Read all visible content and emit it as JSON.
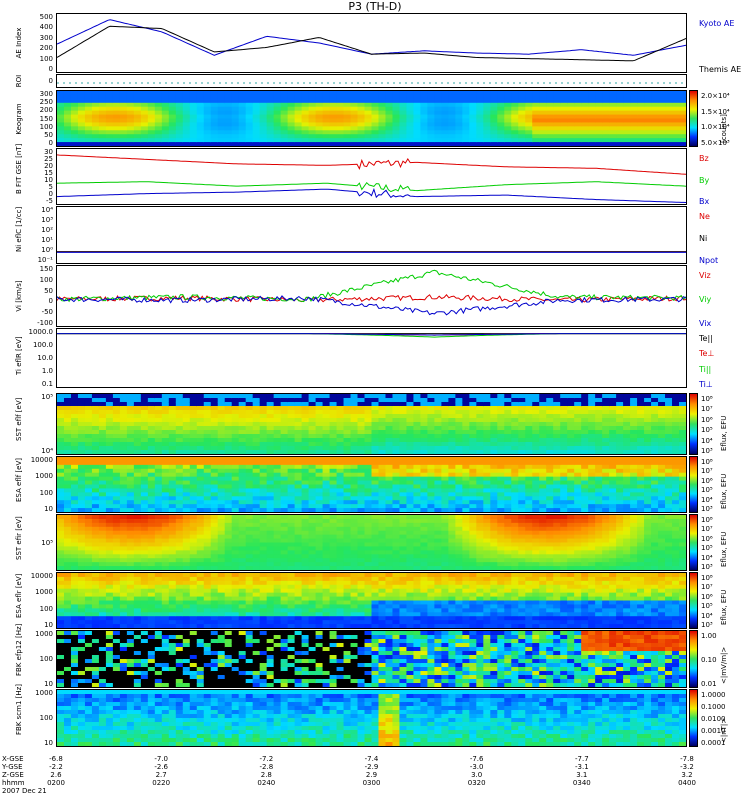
{
  "title": "P3 (TH-D)",
  "panels": [
    {
      "ylabel": "AE Index",
      "ticks": [
        "500",
        "400",
        "300",
        "200",
        "100",
        "0"
      ],
      "right": [
        "Kyoto AE",
        "Themis AE"
      ]
    },
    {
      "ylabel": "ROI",
      "ticks": [
        "0"
      ]
    },
    {
      "ylabel": "Keogram",
      "ticks": [
        "300",
        "250",
        "200",
        "150",
        "100",
        "50",
        "0"
      ],
      "cbar_ticks": [
        "2.0×10⁴",
        "1.5×10⁴",
        "1.0×10⁴",
        "5.0×10³"
      ],
      "cbar_title": "[counts]"
    },
    {
      "ylabel": "B FIT GSE [nT]",
      "ticks": [
        "30",
        "25",
        "20",
        "15",
        "10",
        "5",
        "0",
        "-5"
      ],
      "right": [
        "Bz",
        "By",
        "Bx"
      ]
    },
    {
      "ylabel": "Ni eflC [1/cc]",
      "ticks": [
        "10⁴",
        "10³",
        "10²",
        "10¹",
        "10⁰",
        "10⁻¹"
      ],
      "right": [
        "Ne",
        "Ni",
        "Npot"
      ]
    },
    {
      "ylabel": "Vi [km/s]",
      "ticks": [
        "150",
        "100",
        "50",
        "0",
        "-50",
        "-100"
      ],
      "right": [
        "Viz",
        "Viy",
        "Vix"
      ]
    },
    {
      "ylabel": "Ti eflR [eV]",
      "ticks": [
        "1000.0",
        "100.0",
        "10.0",
        "1.0",
        "0.1"
      ],
      "right": [
        "Te||",
        "Te⊥",
        "Ti||",
        "Ti⊥"
      ]
    },
    {
      "ylabel": "SST eflf [eV]",
      "ticks": [
        "10⁵",
        "10⁴"
      ],
      "cbar_ticks": [
        "10⁸",
        "10⁷",
        "10⁶",
        "10⁵",
        "10⁴",
        "10³"
      ],
      "cbar_title": "Eflux, EFU"
    },
    {
      "ylabel": "ESA eflf [eV]",
      "ticks": [
        "10000",
        "1000",
        "100",
        "10"
      ],
      "cbar_ticks": [
        "10⁸",
        "10⁷",
        "10⁶",
        "10⁵",
        "10⁴",
        "10³"
      ],
      "cbar_title": "Eflux, EFU"
    },
    {
      "ylabel": "SST efir [eV]",
      "ticks": [
        "10⁵"
      ],
      "cbar_ticks": [
        "10⁸",
        "10⁷",
        "10⁶",
        "10⁵",
        "10⁴",
        "10³"
      ],
      "cbar_title": "Eflux, EFU"
    },
    {
      "ylabel": "ESA eflr [eV]",
      "ticks": [
        "10000",
        "1000",
        "100",
        "10"
      ],
      "cbar_ticks": [
        "10⁸",
        "10⁷",
        "10⁶",
        "10⁵",
        "10⁴",
        "10³"
      ],
      "cbar_title": "Eflux, EFU"
    },
    {
      "ylabel": "FBK efp12 [Hz]",
      "ticks": [
        "1000",
        "100",
        "10"
      ],
      "cbar_ticks": [
        "1.00",
        "0.10",
        "0.01"
      ],
      "cbar_title": "<|mV/m|>"
    },
    {
      "ylabel": "FBK scm1 [Hz]",
      "ticks": [
        "1000",
        "100",
        "10"
      ],
      "cbar_ticks": [
        "1.0000",
        "0.1000",
        "0.0100",
        "0.0010",
        "0.0001"
      ],
      "cbar_title": "<|nT|>"
    }
  ],
  "xaxis": {
    "row_labels": [
      "X-GSE",
      "Y-GSE",
      "Z-GSE",
      "hhmm",
      "2007 Dec 21"
    ],
    "columns": [
      [
        "-6.8",
        "-2.2",
        "2.6",
        "0200"
      ],
      [
        "-7.0",
        "-2.6",
        "2.7",
        "0220"
      ],
      [
        "-7.2",
        "-2.8",
        "2.8",
        "0240"
      ],
      [
        "-7.4",
        "-2.9",
        "2.9",
        "0300"
      ],
      [
        "-7.6",
        "-3.0",
        "3.0",
        "0320"
      ],
      [
        "-7.7",
        "-3.1",
        "3.1",
        "0340"
      ],
      [
        "-7.8",
        "-3.2",
        "3.2",
        "0400"
      ]
    ]
  },
  "chart_data": [
    {
      "type": "line",
      "ylabel": "AE Index",
      "ylim": [
        0,
        520
      ],
      "x_hhmm": [
        "0200",
        "0210",
        "0220",
        "0230",
        "0240",
        "0250",
        "0300",
        "0310",
        "0320",
        "0330",
        "0340",
        "0350",
        "0400"
      ],
      "series": [
        {
          "name": "Kyoto AE",
          "color": "#0000cc",
          "values": [
            250,
            470,
            360,
            150,
            320,
            260,
            160,
            190,
            170,
            160,
            200,
            150,
            240
          ]
        },
        {
          "name": "Themis AE",
          "color": "#000000",
          "values": [
            130,
            410,
            390,
            180,
            220,
            310,
            160,
            170,
            130,
            120,
            110,
            100,
            300
          ]
        }
      ]
    },
    {
      "type": "heatmap",
      "ylabel": "Keogram",
      "ylim": [
        0,
        300
      ],
      "scale": "log",
      "range": [
        5000,
        20000
      ]
    },
    {
      "type": "line",
      "ylabel": "B FIT GSE",
      "ylim": [
        -6,
        31
      ],
      "x_hhmm": [
        "0200",
        "0220",
        "0240",
        "0300",
        "0310",
        "0320",
        "0340",
        "0400"
      ],
      "series": [
        {
          "name": "Bz",
          "color": "#dd0000",
          "values": [
            27,
            24,
            21,
            20,
            22,
            19,
            18,
            14
          ]
        },
        {
          "name": "By",
          "color": "#00cc00",
          "values": [
            8,
            9,
            6,
            8,
            3,
            7,
            9,
            6
          ]
        },
        {
          "name": "Bx",
          "color": "#0000cc",
          "values": [
            -1,
            1,
            2,
            4,
            -1,
            0,
            -3,
            -5
          ]
        }
      ]
    },
    {
      "type": "line",
      "ylabel": "Ni eflC",
      "ylim": [
        -1,
        4
      ],
      "scale": "log",
      "series": [
        {
          "name": "Ne",
          "color": "#dd0000",
          "values": [
            0,
            0,
            0,
            0,
            0,
            0
          ]
        },
        {
          "name": "Ni",
          "color": "#000000",
          "values": [
            0,
            0,
            0,
            0,
            0,
            0
          ]
        },
        {
          "name": "Npot",
          "color": "#0000cc",
          "values": [
            -0.05,
            -0.05,
            -0.05,
            -0.05,
            -0.05,
            -0.05
          ]
        }
      ]
    },
    {
      "type": "line",
      "ylabel": "Vi",
      "ylim": [
        -130,
        160
      ],
      "series": [
        {
          "name": "Viz",
          "color": "#dd0000",
          "values": [
            0,
            5,
            -5,
            10,
            -5,
            5
          ]
        },
        {
          "name": "Viy",
          "color": "#00cc00",
          "values": [
            0,
            10,
            0,
            130,
            10,
            5
          ]
        },
        {
          "name": "Vix",
          "color": "#0000cc",
          "values": [
            0,
            -5,
            5,
            -70,
            -5,
            0
          ]
        }
      ]
    },
    {
      "type": "line",
      "ylabel": "Ti eflR",
      "ylim": [
        0.05,
        5000
      ],
      "scale": "log",
      "series": [
        {
          "name": "Te||",
          "color": "#000000",
          "values": [
            2000,
            2000,
            2000,
            2000,
            2000,
            2000
          ]
        },
        {
          "name": "Te⊥",
          "color": "#dd0000",
          "values": [
            2000,
            2000,
            2000,
            1500,
            2000,
            2000
          ]
        },
        {
          "name": "Ti||",
          "color": "#00cc00",
          "values": [
            2000,
            2000,
            2000,
            1000,
            2000,
            2000
          ]
        },
        {
          "name": "Ti⊥",
          "color": "#0000cc",
          "values": [
            2000,
            2000,
            2000,
            1500,
            2000,
            2000
          ]
        }
      ]
    },
    {
      "type": "heatmap",
      "ylabel": "SST eflf",
      "scale": "log",
      "range": [
        1000,
        100000000
      ]
    },
    {
      "type": "heatmap",
      "ylabel": "ESA eflf",
      "scale": "log",
      "range": [
        1000,
        100000000
      ]
    },
    {
      "type": "heatmap",
      "ylabel": "SST efir",
      "scale": "log",
      "range": [
        1000,
        100000000
      ]
    },
    {
      "type": "heatmap",
      "ylabel": "ESA eflr",
      "scale": "log",
      "range": [
        1000,
        100000000
      ]
    },
    {
      "type": "heatmap",
      "ylabel": "FBK efp12",
      "scale": "log",
      "range": [
        0.01,
        1
      ]
    },
    {
      "type": "heatmap",
      "ylabel": "FBK scm1",
      "scale": "log",
      "range": [
        0.0001,
        1
      ]
    }
  ]
}
